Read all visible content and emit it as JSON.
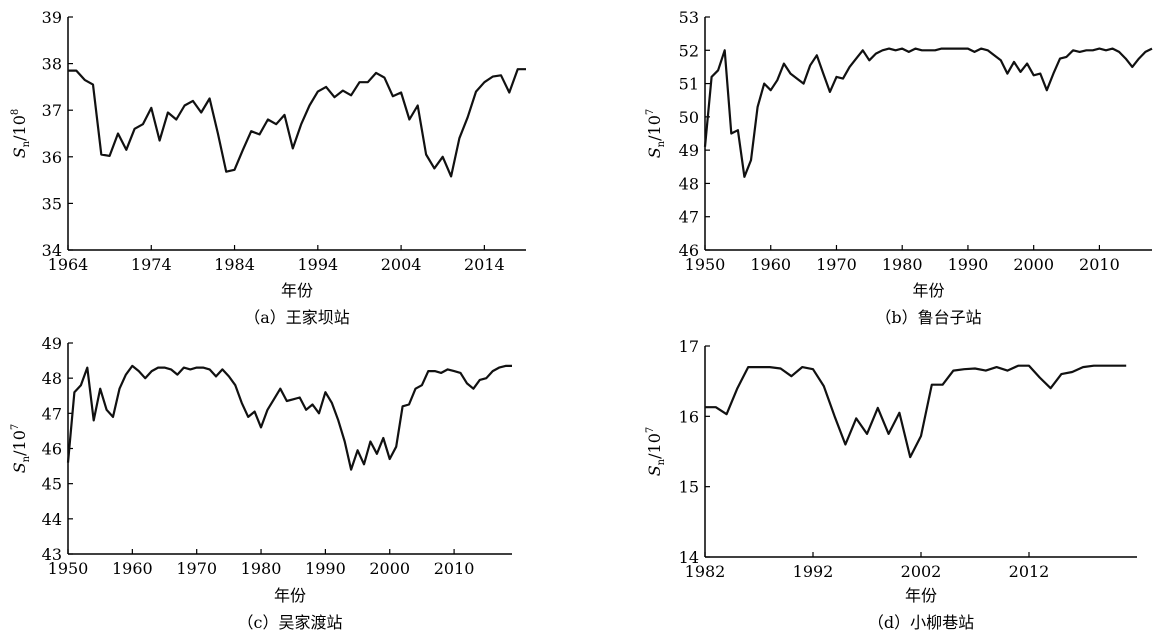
{
  "chart_data": [
    {
      "id": "a",
      "type": "line",
      "caption": "（a）王家坝站",
      "xlabel": "年份",
      "ylabel_main": "S",
      "ylabel_sub": "n",
      "ylabel_unit": "/10",
      "ylabel_exp": "8",
      "xlim": [
        1964,
        2019
      ],
      "ylim": [
        34,
        39
      ],
      "xticks": [
        1964,
        1974,
        1984,
        1994,
        2004,
        2014
      ],
      "yticks": [
        34,
        35,
        36,
        37,
        38,
        39
      ],
      "grid": false,
      "series": [
        {
          "x": [
            1964,
            1965,
            1966,
            1967,
            1968,
            1969,
            1970,
            1971,
            1972,
            1973,
            1974,
            1975,
            1976,
            1977,
            1978,
            1979,
            1980,
            1981,
            1982,
            1983,
            1984,
            1985,
            1986,
            1987,
            1988,
            1989,
            1990,
            1991,
            1992,
            1993,
            1994,
            1995,
            1996,
            1997,
            1998,
            1999,
            2000,
            2001,
            2002,
            2003,
            2004,
            2005,
            2006,
            2007,
            2008,
            2009,
            2010,
            2011,
            2012,
            2013,
            2014,
            2015,
            2016,
            2017,
            2018,
            2019
          ],
          "y": [
            37.85,
            37.85,
            37.65,
            37.55,
            36.05,
            36.02,
            36.5,
            36.15,
            36.6,
            36.7,
            37.05,
            36.35,
            36.95,
            36.8,
            37.1,
            37.2,
            36.95,
            37.25,
            36.5,
            35.68,
            35.72,
            36.15,
            36.55,
            36.48,
            36.8,
            36.7,
            36.9,
            36.18,
            36.7,
            37.1,
            37.4,
            37.5,
            37.28,
            37.42,
            37.32,
            37.6,
            37.6,
            37.8,
            37.7,
            37.3,
            37.38,
            36.8,
            37.1,
            36.05,
            35.75,
            36.0,
            35.58,
            36.4,
            36.85,
            37.4,
            37.6,
            37.72,
            37.75,
            37.38,
            37.88,
            37.88
          ]
        }
      ]
    },
    {
      "id": "b",
      "type": "line",
      "caption": "（b）鲁台子站",
      "xlabel": "年份",
      "ylabel_main": "S",
      "ylabel_sub": "n",
      "ylabel_unit": "/10",
      "ylabel_exp": "7",
      "xlim": [
        1950,
        2018
      ],
      "ylim": [
        46,
        53
      ],
      "xticks": [
        1950,
        1960,
        1970,
        1980,
        1990,
        2000,
        2010
      ],
      "yticks": [
        46,
        47,
        48,
        49,
        50,
        51,
        52,
        53
      ],
      "grid": false,
      "series": [
        {
          "x": [
            1950,
            1951,
            1952,
            1953,
            1954,
            1955,
            1956,
            1957,
            1958,
            1959,
            1960,
            1961,
            1962,
            1963,
            1964,
            1965,
            1966,
            1967,
            1968,
            1969,
            1970,
            1971,
            1972,
            1973,
            1974,
            1975,
            1976,
            1977,
            1978,
            1979,
            1980,
            1981,
            1982,
            1983,
            1984,
            1985,
            1986,
            1987,
            1988,
            1989,
            1990,
            1991,
            1992,
            1993,
            1994,
            1995,
            1996,
            1997,
            1998,
            1999,
            2000,
            2001,
            2002,
            2003,
            2004,
            2005,
            2006,
            2007,
            2008,
            2009,
            2010,
            2011,
            2012,
            2013,
            2014,
            2015,
            2016,
            2017,
            2018
          ],
          "y": [
            49.1,
            51.2,
            51.4,
            52.0,
            49.5,
            49.6,
            48.2,
            48.7,
            50.3,
            51.0,
            50.8,
            51.1,
            51.6,
            51.3,
            51.15,
            51.0,
            51.55,
            51.85,
            51.3,
            50.75,
            51.2,
            51.15,
            51.5,
            51.75,
            52.0,
            51.7,
            51.9,
            52.0,
            52.05,
            52.0,
            52.05,
            51.95,
            52.05,
            52.0,
            52.0,
            52.0,
            52.05,
            52.05,
            52.05,
            52.05,
            52.05,
            51.95,
            52.05,
            52.0,
            51.85,
            51.7,
            51.3,
            51.65,
            51.35,
            51.6,
            51.25,
            51.3,
            50.8,
            51.3,
            51.75,
            51.8,
            52.0,
            51.95,
            52.0,
            52.0,
            52.05,
            52.0,
            52.05,
            51.95,
            51.75,
            51.5,
            51.75,
            51.95,
            52.05
          ]
        }
      ]
    },
    {
      "id": "c",
      "type": "line",
      "caption": "（c）吴家渡站",
      "xlabel": "年份",
      "ylabel_main": "S",
      "ylabel_sub": "n",
      "ylabel_unit": "/10",
      "ylabel_exp": "7",
      "xlim": [
        1950,
        2019
      ],
      "ylim": [
        43,
        49
      ],
      "xticks": [
        1950,
        1960,
        1970,
        1980,
        1990,
        2000,
        2010
      ],
      "yticks": [
        43,
        44,
        45,
        46,
        47,
        48,
        49
      ],
      "grid": false,
      "series": [
        {
          "x": [
            1950,
            1951,
            1952,
            1953,
            1954,
            1955,
            1956,
            1957,
            1958,
            1959,
            1960,
            1961,
            1962,
            1963,
            1964,
            1965,
            1966,
            1967,
            1968,
            1969,
            1970,
            1971,
            1972,
            1973,
            1974,
            1975,
            1976,
            1977,
            1978,
            1979,
            1980,
            1981,
            1982,
            1983,
            1984,
            1985,
            1986,
            1987,
            1988,
            1989,
            1990,
            1991,
            1992,
            1993,
            1994,
            1995,
            1996,
            1997,
            1998,
            1999,
            2000,
            2001,
            2002,
            2003,
            2004,
            2005,
            2006,
            2007,
            2008,
            2009,
            2010,
            2011,
            2012,
            2013,
            2014,
            2015,
            2016,
            2017,
            2018,
            2019
          ],
          "y": [
            45.6,
            47.6,
            47.8,
            48.3,
            46.8,
            47.7,
            47.1,
            46.9,
            47.7,
            48.1,
            48.35,
            48.2,
            48.0,
            48.2,
            48.3,
            48.3,
            48.25,
            48.1,
            48.3,
            48.25,
            48.3,
            48.3,
            48.25,
            48.05,
            48.25,
            48.05,
            47.8,
            47.3,
            46.9,
            47.05,
            46.6,
            47.1,
            47.4,
            47.7,
            47.35,
            47.4,
            47.45,
            47.1,
            47.25,
            47.0,
            47.6,
            47.3,
            46.8,
            46.2,
            45.4,
            45.95,
            45.55,
            46.2,
            45.85,
            46.3,
            45.7,
            46.05,
            47.2,
            47.25,
            47.7,
            47.8,
            48.2,
            48.2,
            48.15,
            48.25,
            48.2,
            48.15,
            47.85,
            47.7,
            47.95,
            48.0,
            48.2,
            48.3,
            48.35,
            48.35
          ]
        }
      ]
    },
    {
      "id": "d",
      "type": "line",
      "caption": "（d）小柳巷站",
      "xlabel": "年份",
      "ylabel_main": "S",
      "ylabel_sub": "n",
      "ylabel_unit": "/10",
      "ylabel_exp": "7",
      "xlim": [
        1982,
        2022
      ],
      "ylim": [
        14,
        17
      ],
      "xticks": [
        1982,
        1992,
        2002,
        2012
      ],
      "yticks": [
        14,
        15,
        16,
        17
      ],
      "grid": false,
      "series": [
        {
          "x": [
            1982,
            1983,
            1984,
            1985,
            1986,
            1987,
            1988,
            1989,
            1990,
            1991,
            1992,
            1993,
            1994,
            1995,
            1996,
            1997,
            1998,
            1999,
            2000,
            2001,
            2002,
            2003,
            2004,
            2005,
            2006,
            2007,
            2008,
            2009,
            2010,
            2011,
            2012,
            2013,
            2014,
            2015,
            2016,
            2017,
            2018,
            2019,
            2020,
            2021
          ],
          "y": [
            16.13,
            16.13,
            16.03,
            16.4,
            16.7,
            16.7,
            16.7,
            16.68,
            16.57,
            16.7,
            16.67,
            16.43,
            16.0,
            15.6,
            15.97,
            15.75,
            16.12,
            15.75,
            16.05,
            15.42,
            15.72,
            16.45,
            16.45,
            16.65,
            16.67,
            16.68,
            16.65,
            16.7,
            16.65,
            16.72,
            16.72,
            16.55,
            16.4,
            16.6,
            16.63,
            16.7,
            16.72,
            16.72,
            16.72,
            16.72
          ]
        }
      ]
    }
  ]
}
